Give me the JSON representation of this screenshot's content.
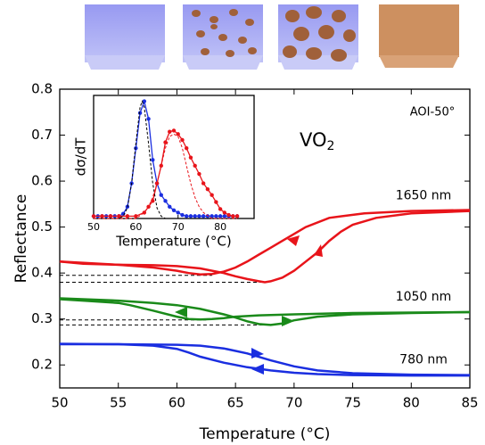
{
  "chart_data": {
    "type": "line",
    "x_label": "Temperature (°C)",
    "y_label": "Reflectance",
    "material": [
      "VO",
      "2"
    ],
    "angle_label": "AOI-50°",
    "xlim": [
      50,
      85
    ],
    "ylim": [
      0.15,
      0.8
    ],
    "xticks": [
      50,
      55,
      60,
      65,
      70,
      75,
      80,
      85
    ],
    "yticks": [
      0.2,
      0.3,
      0.4,
      0.5,
      0.6,
      0.7,
      0.8
    ],
    "series": [
      {
        "name": "1650 nm",
        "color": "#e8141a",
        "heating": {
          "x": [
            50,
            52,
            55,
            58,
            60,
            62,
            64,
            65,
            66,
            67,
            67.5,
            68,
            69,
            70,
            71,
            72,
            73,
            74,
            75,
            77,
            80,
            85
          ],
          "values": [
            0.425,
            0.42,
            0.418,
            0.417,
            0.415,
            0.41,
            0.4,
            0.393,
            0.387,
            0.382,
            0.38,
            0.382,
            0.39,
            0.405,
            0.425,
            0.445,
            0.47,
            0.49,
            0.505,
            0.52,
            0.53,
            0.535
          ]
        },
        "cooling": {
          "x": [
            85,
            80,
            76,
            73,
            71,
            70,
            69,
            68,
            67,
            66,
            65,
            64,
            63,
            62,
            61,
            60,
            58,
            55,
            50
          ],
          "values": [
            0.537,
            0.535,
            0.53,
            0.52,
            0.5,
            0.485,
            0.47,
            0.455,
            0.44,
            0.425,
            0.412,
            0.403,
            0.398,
            0.397,
            0.4,
            0.405,
            0.412,
            0.418,
            0.425
          ]
        }
      },
      {
        "name": "1050 nm",
        "color": "#1a8a1a",
        "heating": {
          "x": [
            50,
            55,
            58,
            60,
            62,
            64,
            65,
            66,
            67,
            68,
            69,
            70,
            72,
            75,
            80,
            85
          ],
          "values": [
            0.345,
            0.34,
            0.335,
            0.33,
            0.322,
            0.31,
            0.303,
            0.295,
            0.289,
            0.287,
            0.29,
            0.297,
            0.305,
            0.31,
            0.313,
            0.315
          ]
        },
        "cooling": {
          "x": [
            85,
            80,
            75,
            70,
            67,
            65,
            64,
            63,
            62,
            61,
            60,
            58,
            56,
            55,
            52,
            50
          ],
          "values": [
            0.315,
            0.314,
            0.313,
            0.31,
            0.308,
            0.305,
            0.302,
            0.3,
            0.299,
            0.3,
            0.305,
            0.318,
            0.33,
            0.335,
            0.34,
            0.343
          ]
        }
      },
      {
        "name": "780 nm",
        "color": "#1a2ee0",
        "heating": {
          "x": [
            50,
            55,
            60,
            62,
            64,
            66,
            68,
            70,
            72,
            75,
            80,
            85
          ],
          "values": [
            0.245,
            0.245,
            0.244,
            0.242,
            0.236,
            0.225,
            0.21,
            0.197,
            0.188,
            0.182,
            0.179,
            0.178
          ]
        },
        "cooling": {
          "x": [
            85,
            80,
            75,
            72,
            70,
            68,
            66,
            64,
            62,
            61,
            60,
            58,
            55,
            50
          ],
          "values": [
            0.177,
            0.177,
            0.178,
            0.18,
            0.183,
            0.188,
            0.195,
            0.205,
            0.218,
            0.227,
            0.235,
            0.242,
            0.245,
            0.246
          ]
        }
      }
    ],
    "reference_lines": [
      {
        "y": 0.395,
        "x": [
          50,
          63
        ]
      },
      {
        "y": 0.38,
        "x": [
          50,
          67.5
        ]
      },
      {
        "y": 0.298,
        "x": [
          50,
          62.5
        ]
      },
      {
        "y": 0.287,
        "x": [
          50,
          68
        ]
      }
    ],
    "inset": {
      "x_label": "Temperature (°C)",
      "y_label": "dσ/dT",
      "xlim": [
        50,
        88
      ],
      "ylim": [
        0,
        1.05
      ],
      "xticks": [
        50,
        60,
        70,
        80
      ],
      "series": [
        {
          "color": "#1a2ee0",
          "style": "solid-dots",
          "x": [
            50,
            51,
            52,
            53,
            54,
            55,
            56,
            57,
            58,
            59,
            60,
            61,
            62,
            63,
            64,
            65,
            66,
            67,
            68,
            69,
            70,
            71,
            72,
            73,
            74,
            75,
            76,
            77,
            78,
            79,
            80,
            81,
            82,
            83,
            84
          ],
          "values": [
            0.02,
            0.02,
            0.02,
            0.02,
            0.02,
            0.02,
            0.02,
            0.04,
            0.1,
            0.3,
            0.6,
            0.9,
            1.0,
            0.85,
            0.5,
            0.3,
            0.2,
            0.15,
            0.1,
            0.07,
            0.05,
            0.03,
            0.02,
            0.02,
            0.02,
            0.02,
            0.02,
            0.02,
            0.02,
            0.02,
            0.02,
            0.02,
            0.02,
            0.02,
            0.02
          ]
        },
        {
          "color": "#e8141a",
          "style": "solid-dots",
          "x": [
            50,
            52,
            54,
            56,
            58,
            60,
            62,
            63,
            64,
            65,
            66,
            67,
            68,
            69,
            70,
            71,
            72,
            73,
            74,
            75,
            76,
            77,
            78,
            79,
            80,
            81,
            82,
            83,
            84
          ],
          "values": [
            0.02,
            0.02,
            0.02,
            0.02,
            0.02,
            0.02,
            0.05,
            0.1,
            0.15,
            0.3,
            0.45,
            0.65,
            0.74,
            0.75,
            0.72,
            0.67,
            0.6,
            0.52,
            0.45,
            0.38,
            0.3,
            0.25,
            0.2,
            0.14,
            0.08,
            0.05,
            0.03,
            0.02,
            0.02
          ]
        },
        {
          "color": "#000000",
          "style": "dashed",
          "x": [
            50,
            56,
            57,
            58,
            59,
            60,
            61,
            61.5,
            62,
            63,
            64,
            65,
            66,
            67,
            70,
            84
          ],
          "values": [
            0.0,
            0.0,
            0.02,
            0.09,
            0.3,
            0.64,
            0.95,
            1.0,
            0.95,
            0.64,
            0.3,
            0.09,
            0.02,
            0.0,
            0.0,
            0.0
          ]
        },
        {
          "color": "#e8141a",
          "style": "dashed",
          "x": [
            50,
            60,
            62,
            63,
            64,
            65,
            66,
            67,
            68,
            69,
            70,
            71,
            72,
            73,
            74,
            75,
            76,
            78,
            84
          ],
          "values": [
            0.0,
            0.0,
            0.05,
            0.1,
            0.18,
            0.3,
            0.45,
            0.6,
            0.7,
            0.72,
            0.7,
            0.6,
            0.45,
            0.3,
            0.18,
            0.1,
            0.05,
            0.0,
            0.0
          ]
        }
      ]
    }
  }
}
